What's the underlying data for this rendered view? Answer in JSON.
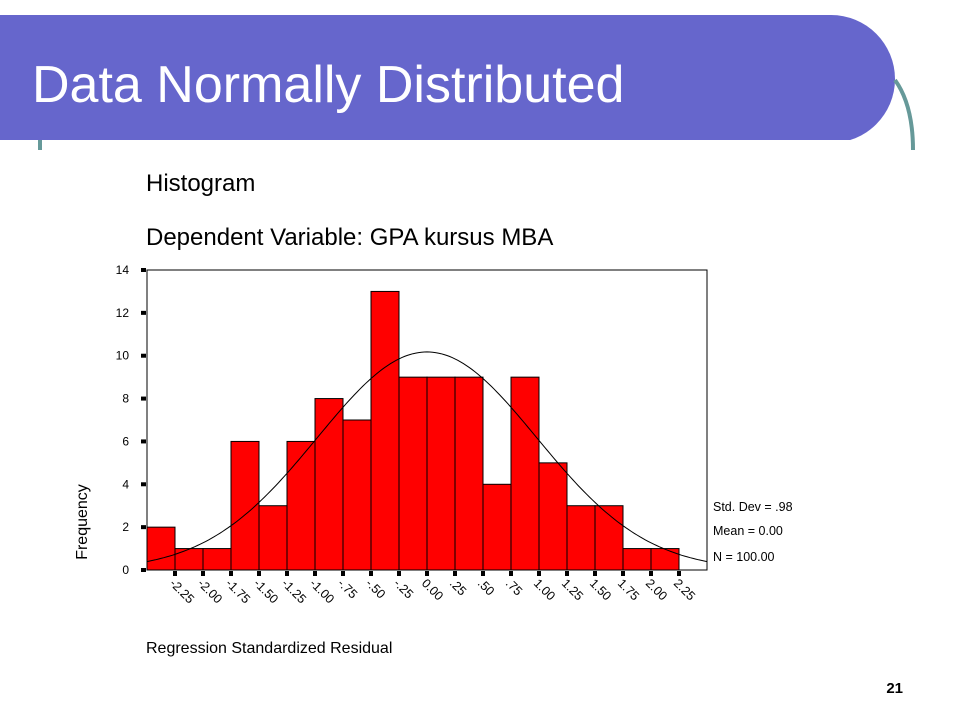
{
  "slide": {
    "title": "Data Normally Distributed",
    "page_number": "21",
    "accent_color": "#6666cc",
    "decor_color": "#669999"
  },
  "chart_data": {
    "type": "bar",
    "title": "Histogram",
    "subtitle": "Dependent Variable: GPA kursus MBA",
    "xlabel": "Regression Standardized Residual",
    "ylabel": "Frequency",
    "ylim": [
      0,
      14
    ],
    "yticks": [
      0,
      2,
      4,
      6,
      8,
      10,
      12,
      14
    ],
    "bin_width": 0.25,
    "bin_start": -2.5,
    "xlim": [
      -2.5,
      2.5
    ],
    "xticks": [
      -2.25,
      -2.0,
      -1.75,
      -1.5,
      -1.25,
      -1.0,
      -0.75,
      -0.5,
      -0.25,
      0.0,
      0.25,
      0.5,
      0.75,
      1.0,
      1.25,
      1.5,
      1.75,
      2.0,
      2.25
    ],
    "xtick_labels": [
      "-2.25",
      "-2.00",
      "-1.75",
      "-1.50",
      "-1.25",
      "-1.00",
      "-.75",
      "-.50",
      "-.25",
      "0.00",
      ".25",
      ".50",
      ".75",
      "1.00",
      "1.25",
      "1.50",
      "1.75",
      "2.00",
      "2.25"
    ],
    "values": [
      2,
      1,
      1,
      6,
      3,
      6,
      8,
      7,
      13,
      9,
      9,
      9,
      4,
      9,
      5,
      3,
      3,
      1,
      1
    ],
    "bar_color": "#ff0000",
    "normal_curve": true,
    "stats": {
      "std_dev": "Std. Dev = .98",
      "mean": "Mean = 0.00",
      "n": "N = 100.00"
    }
  }
}
